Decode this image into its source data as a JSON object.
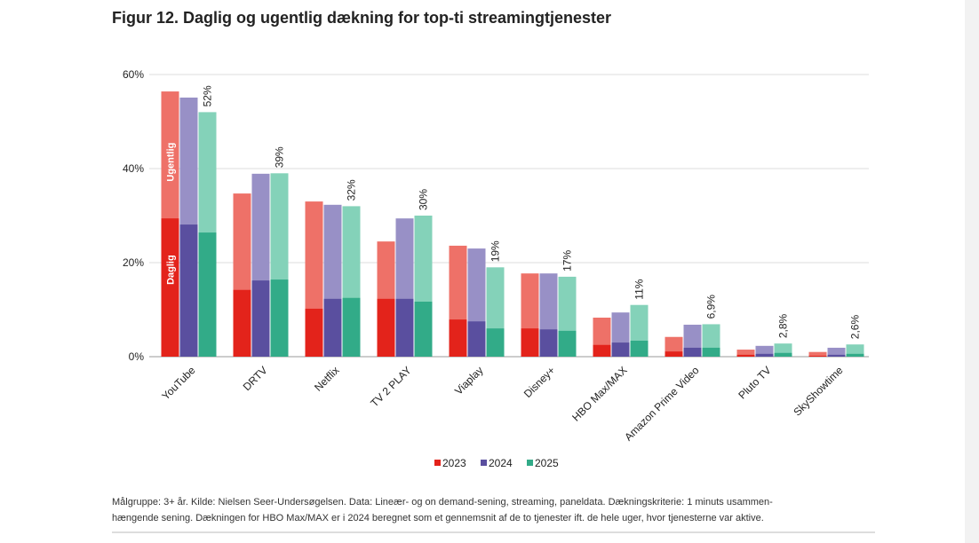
{
  "chart_data": {
    "type": "overlaid-bar",
    "title": "Figur 12. Daglig og ugentlig dækning for top-ti streamingtjenester",
    "categories": [
      "YouTube",
      "DRTV",
      "Netflix",
      "TV 2 PLAY",
      "Viaplay",
      "Disney+",
      "HBO Max/MAX",
      "Amazon Prime Video",
      "Pluto TV",
      "SkyShowtime"
    ],
    "measure_labels": {
      "weekly": "Ugentlig",
      "daily": "Daglig"
    },
    "series": [
      {
        "name": "2023",
        "color": "#ee7168",
        "daily_color": "#e3231b",
        "values": [
          56.4,
          34.7,
          33.0,
          24.5,
          23.6,
          17.7,
          8.3,
          4.2,
          1.5,
          1.0
        ],
        "daily_values": [
          29.4,
          14.2,
          10.2,
          12.3,
          7.9,
          6.0,
          2.5,
          1.1,
          0.4,
          0.2
        ]
      },
      {
        "name": "2024",
        "color": "#9890c6",
        "daily_color": "#5a4f9f",
        "values": [
          55.1,
          38.9,
          32.3,
          29.4,
          23.0,
          17.7,
          9.4,
          6.8,
          2.3,
          1.9
        ],
        "daily_values": [
          28.1,
          16.2,
          12.3,
          12.3,
          7.5,
          5.8,
          3.0,
          1.9,
          0.6,
          0.4
        ]
      },
      {
        "name": "2025",
        "color": "#84d2b9",
        "daily_color": "#32ab88",
        "values": [
          52,
          39,
          32,
          30,
          19,
          17,
          11,
          6.9,
          2.8,
          2.6
        ],
        "value_labels": [
          "52%",
          "39%",
          "32%",
          "30%",
          "19%",
          "17%",
          "11%",
          "6,9%",
          "2,8%",
          "2,6%"
        ],
        "daily_values": [
          26.4,
          16.4,
          12.5,
          11.7,
          6.0,
          5.5,
          3.4,
          1.9,
          0.8,
          0.6
        ]
      }
    ],
    "ylim": [
      0,
      60
    ],
    "yticks": [
      {
        "value": 0,
        "label": "0%"
      },
      {
        "value": 20,
        "label": "20%"
      },
      {
        "value": 40,
        "label": "40%"
      },
      {
        "value": 60,
        "label": "60%"
      }
    ],
    "grid": true,
    "note": [
      "Målgruppe: 3+ år. Kilde: Nielsen Seer-Undersøgelsen. Data: Lineær- og on demand-sening, streaming, paneldata. Dækningskriterie: 1 minuts usammen-",
      "hængende sening. Dækningen for HBO Max/MAX er i 2024 beregnet som et gennemsnit af de to tjenester ift. de hele uger, hvor tjenesterne var aktive."
    ]
  }
}
